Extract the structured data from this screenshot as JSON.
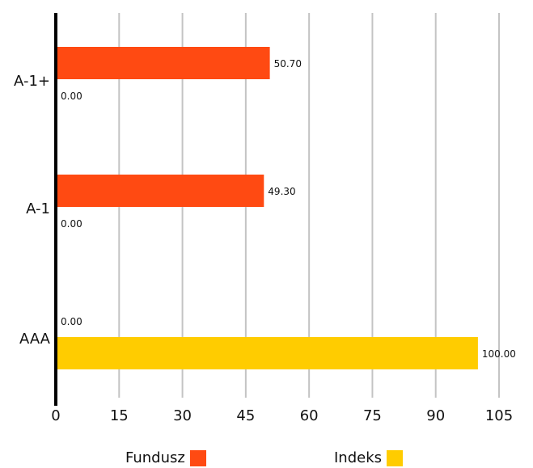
{
  "chart_data": {
    "type": "bar",
    "orientation": "horizontal",
    "categories": [
      "A-1+",
      "A-1",
      "AAA"
    ],
    "series": [
      {
        "name": "Fundusz",
        "color": "#ff4a12",
        "values": [
          50.7,
          49.3,
          0.0
        ],
        "labels": [
          "50.70",
          "49.30",
          "0.00"
        ]
      },
      {
        "name": "Indeks",
        "color": "#ffcc00",
        "values": [
          0.0,
          0.0,
          100.0
        ],
        "labels": [
          "0.00",
          "0.00",
          "100.00"
        ]
      }
    ],
    "x_ticks": [
      "0",
      "15",
      "30",
      "45",
      "60",
      "75",
      "90",
      "105"
    ],
    "xlim": [
      0,
      105
    ],
    "grid": true,
    "legend_position": "bottom"
  }
}
